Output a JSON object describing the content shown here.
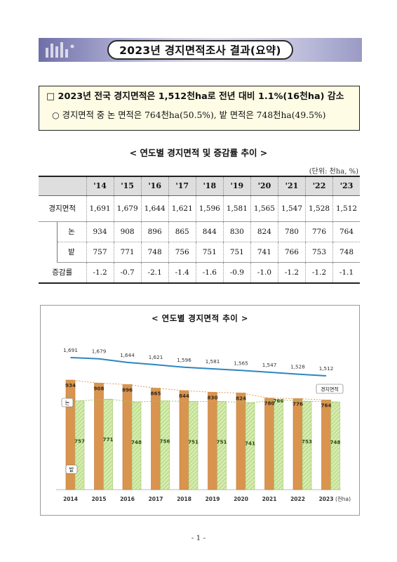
{
  "header": {
    "title": "2023년 경지면적조사 결과(요약)"
  },
  "summary": {
    "line1": "□ 2023년 전국 경지면적은 1,512천ha로 전년 대비 1.1%(16천ha) 감소",
    "line2": "○ 경지면적 중 논 면적은 764천ha(50.5%), 밭 면적은 748천ha(49.5%)"
  },
  "table": {
    "title": "< 연도별 경지면적 및 증감률 추이 >",
    "unit": "(단위: 천ha, %)",
    "years": [
      "'14",
      "'15",
      "'16",
      "'17",
      "'18",
      "'19",
      "'20",
      "'21",
      "'22",
      "'23"
    ],
    "rows": [
      {
        "label": "경지면적",
        "values": [
          "1,691",
          "1,679",
          "1,644",
          "1,621",
          "1,596",
          "1,581",
          "1,565",
          "1,547",
          "1,528",
          "1,512"
        ]
      },
      {
        "label": "논",
        "values": [
          "934",
          "908",
          "896",
          "865",
          "844",
          "830",
          "824",
          "780",
          "776",
          "764"
        ]
      },
      {
        "label": "밭",
        "values": [
          "757",
          "771",
          "748",
          "756",
          "751",
          "751",
          "741",
          "766",
          "753",
          "748"
        ]
      },
      {
        "label": "증감률",
        "values": [
          "-1.2",
          "-0.7",
          "-2.1",
          "-1.4",
          "-1.6",
          "-0.9",
          "-1.0",
          "-1.2",
          "-1.2",
          "-1.1"
        ]
      }
    ]
  },
  "chart_data": {
    "type": "bar",
    "title": "< 연도별 경지면적 추이 >",
    "categories": [
      "2014",
      "2015",
      "2016",
      "2017",
      "2018",
      "2019",
      "2020",
      "2021",
      "2022",
      "2023"
    ],
    "unit_label": "(천ha)",
    "series": [
      {
        "name": "논",
        "type": "bar",
        "color": "#d9944f",
        "values": [
          934,
          908,
          896,
          865,
          844,
          830,
          824,
          780,
          776,
          764
        ]
      },
      {
        "name": "밭",
        "type": "bar",
        "color": "#c9e39a",
        "values": [
          757,
          771,
          748,
          756,
          751,
          751,
          741,
          766,
          753,
          748
        ]
      },
      {
        "name": "경지면적",
        "type": "line",
        "color": "#2e86c1",
        "values": [
          1691,
          1679,
          1644,
          1621,
          1596,
          1581,
          1565,
          1547,
          1528,
          1512
        ]
      }
    ],
    "total_labels": [
      "1,691",
      "1,679",
      "1,644",
      "1,621",
      "1,596",
      "1,581",
      "1,565",
      "1,547",
      "1,528",
      "1,512"
    ]
  },
  "footer": {
    "page": "- 1 -"
  }
}
